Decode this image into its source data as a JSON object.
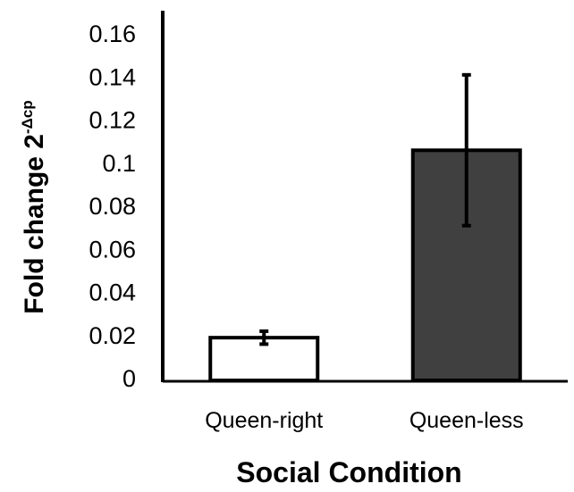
{
  "chart_data": {
    "type": "bar",
    "categories": [
      "Queen-right",
      "Queen-less"
    ],
    "values": [
      0.019,
      0.106
    ],
    "errors": [
      0.003,
      0.035
    ],
    "bar_colors": [
      "#ffffff",
      "#404040"
    ],
    "bar_stroke": "#000000",
    "xlabel": "Social Condition",
    "ylabel": {
      "base": "Fold change 2",
      "superscript": "-Δcp"
    },
    "ylim": [
      0,
      0.16
    ],
    "ytick_values": [
      0,
      0.02,
      0.04,
      0.06,
      0.08,
      0.1,
      0.12,
      0.14,
      0.16
    ],
    "yticks": [
      "0",
      "0.02",
      "0.04",
      "0.06",
      "0.08",
      "0.1",
      "0.12",
      "0.14",
      "0.16"
    ],
    "grid": false
  }
}
